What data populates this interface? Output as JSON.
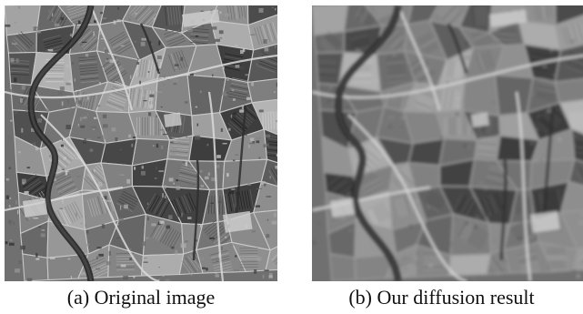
{
  "figure": {
    "panels": [
      {
        "caption": "(a) Original image"
      },
      {
        "caption": "(b) Our diffusion result"
      }
    ]
  }
}
